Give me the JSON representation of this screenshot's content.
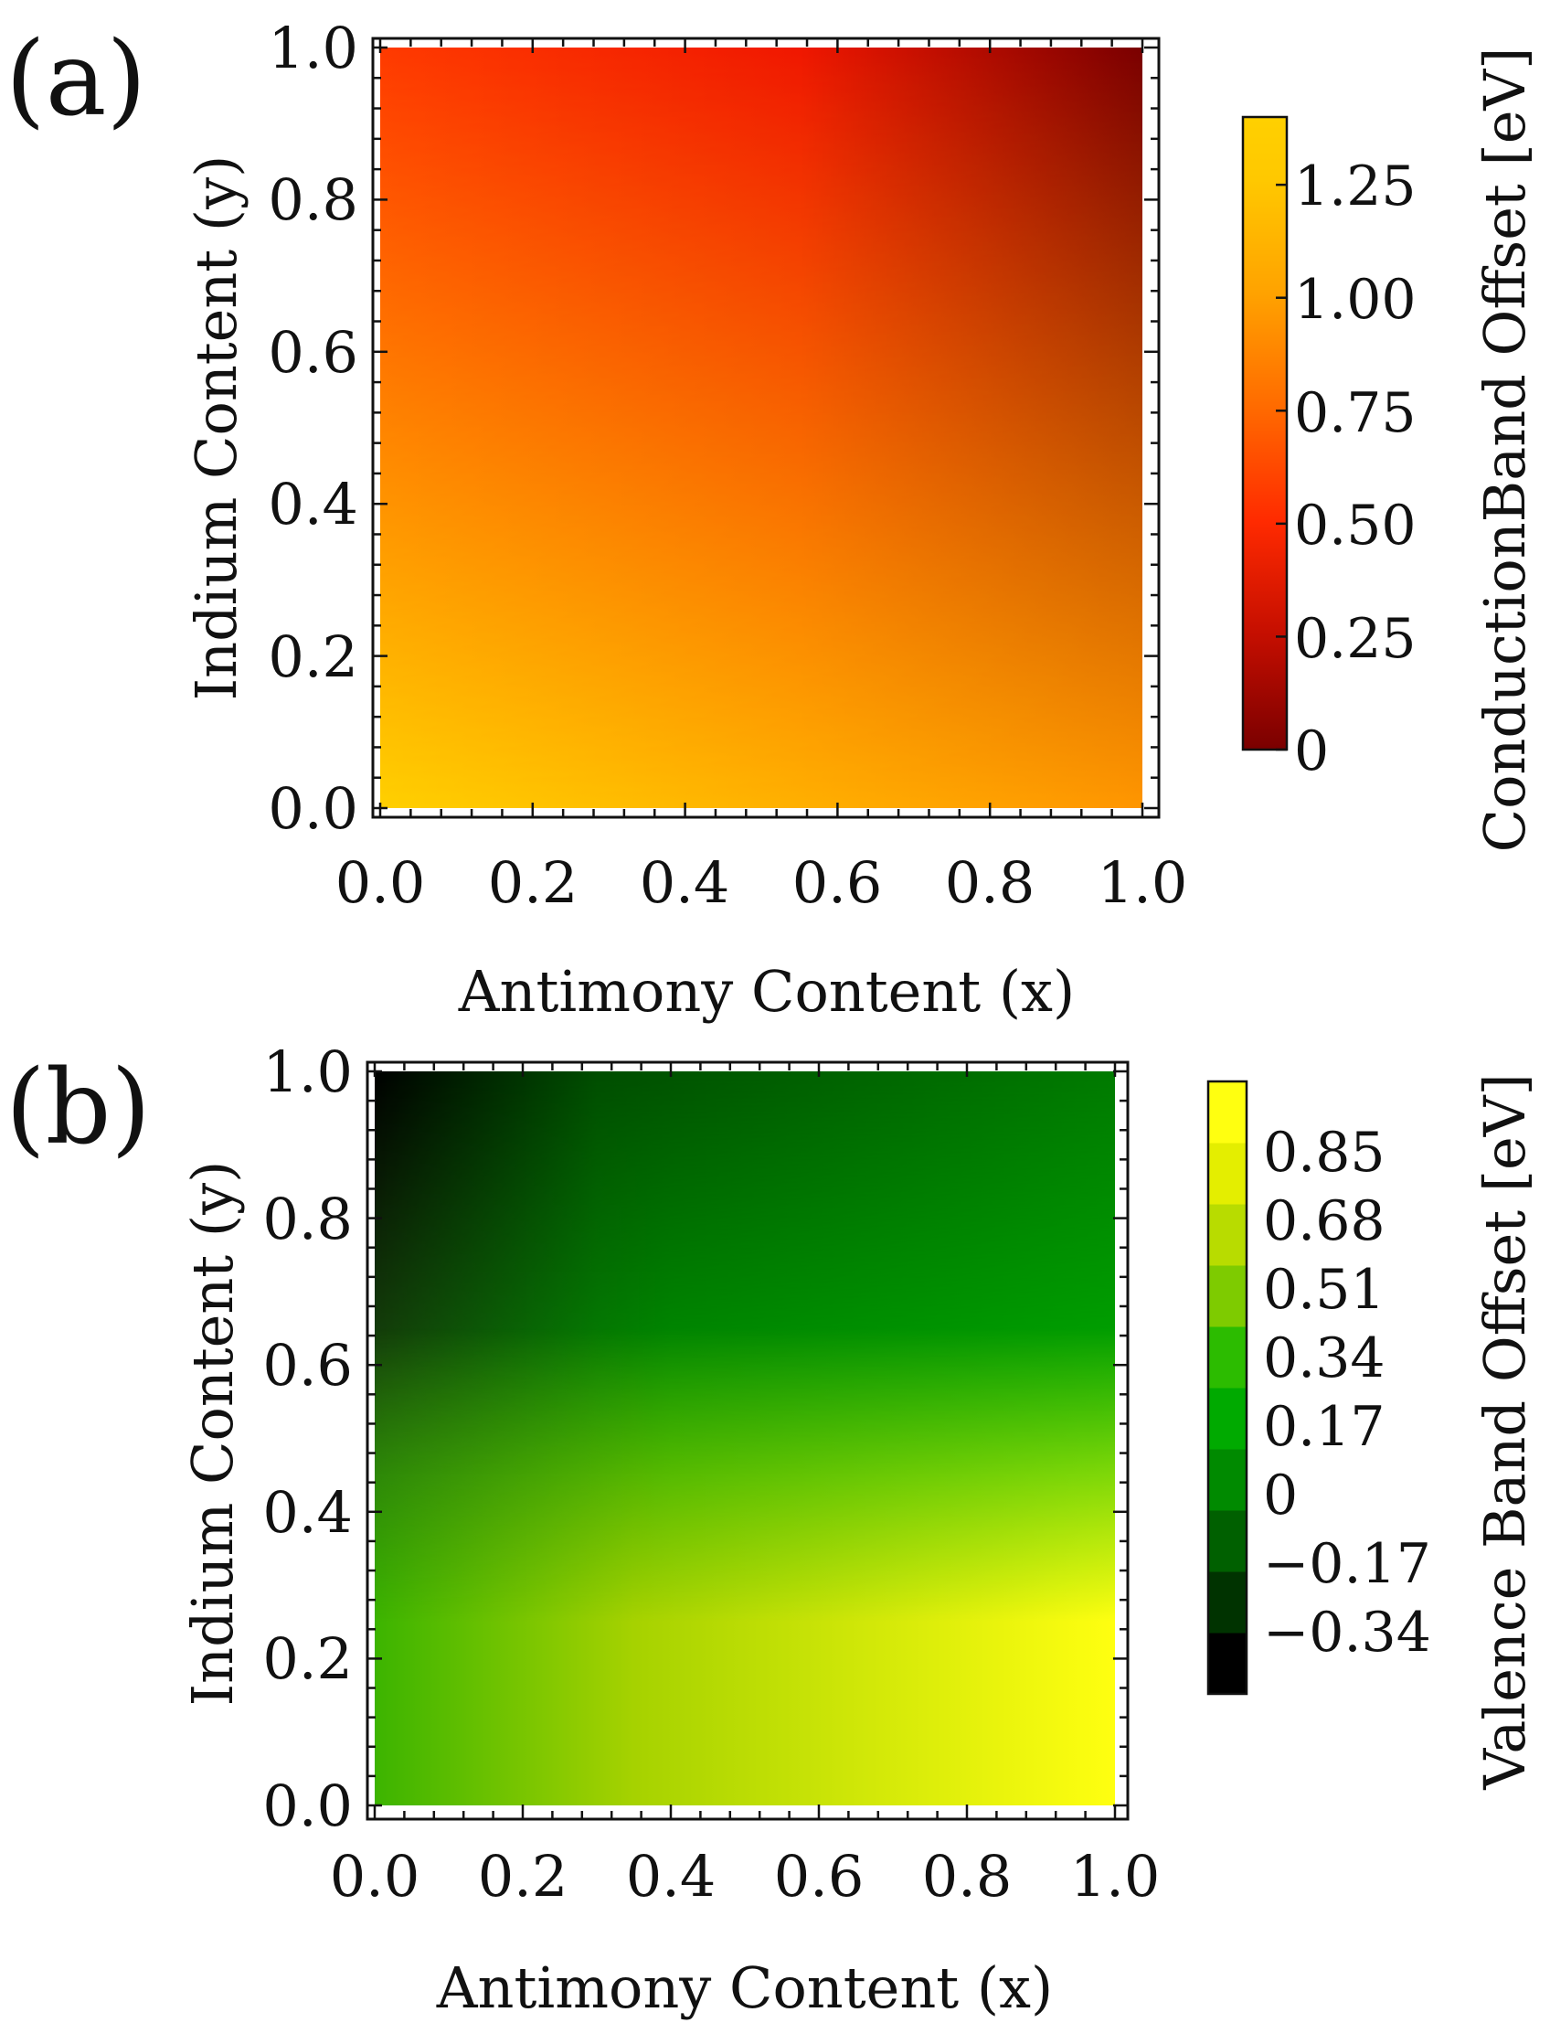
{
  "chart_data": [
    {
      "type": "heatmap",
      "panel_label": "(a)",
      "xlabel": "Antimony Content (x)",
      "ylabel": "Indium Content (y)",
      "xlim": [
        0,
        1
      ],
      "ylim": [
        0,
        1
      ],
      "xticks": [
        "0.0",
        "0.2",
        "0.4",
        "0.6",
        "0.8",
        "1.0"
      ],
      "yticks": [
        "0.0",
        "0.2",
        "0.4",
        "0.6",
        "0.8",
        "1.0"
      ],
      "corner_values": {
        "x0_y0": 1.4,
        "x1_y0": 1.0,
        "x0_y1": 0.65,
        "x1_y1": 0.0
      },
      "colorbar": {
        "title": "ConductionBand Offset [eV]",
        "range": [
          0,
          1.4
        ],
        "ticks": [
          "0",
          "0.25",
          "0.50",
          "0.75",
          "1.00",
          "1.25"
        ],
        "tick_values": [
          0,
          0.25,
          0.5,
          0.75,
          1.0,
          1.25
        ],
        "colors": [
          "#7a0000",
          "#c40e00",
          "#ff2a00",
          "#ff6a00",
          "#ffa200",
          "#ffc800",
          "#ffd000"
        ],
        "style": "continuous"
      }
    },
    {
      "type": "heatmap",
      "panel_label": "(b)",
      "xlabel": "Antimony Content (x)",
      "ylabel": "Indium Content (y)",
      "xlim": [
        0,
        1
      ],
      "ylim": [
        0,
        1
      ],
      "xticks": [
        "0.0",
        "0.2",
        "0.4",
        "0.6",
        "0.8",
        "1.0"
      ],
      "yticks": [
        "0.0",
        "0.2",
        "0.4",
        "0.6",
        "0.8",
        "1.0"
      ],
      "corner_values": {
        "x0_y0": 0.45,
        "x1_y0": 0.95,
        "x0_y1": -0.42,
        "x1_y1": 0.05
      },
      "colorbar": {
        "title": "Valence Band Offset [eV]",
        "range": [
          -0.51,
          1.02
        ],
        "ticks": [
          "-0.34",
          "-0.17",
          "0",
          "0.17",
          "0.34",
          "0.51",
          "0.68",
          "0.85"
        ],
        "tick_values": [
          -0.34,
          -0.17,
          0,
          0.17,
          0.34,
          0.51,
          0.68,
          0.85
        ],
        "colors": [
          "#000000",
          "#003300",
          "#006000",
          "#008a00",
          "#00aa00",
          "#2cbc00",
          "#7ecb00",
          "#b8dc00",
          "#e4ee00",
          "#ffff10"
        ],
        "style": "stepped"
      }
    }
  ]
}
